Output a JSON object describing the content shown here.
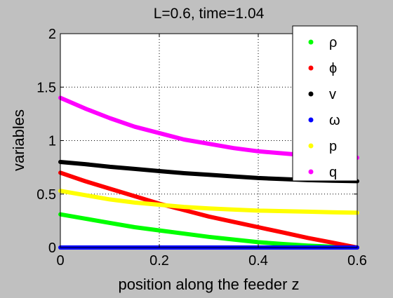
{
  "chart_data": {
    "type": "line",
    "title": "L=0.6, time=1.04",
    "xlabel": "position along the feeder z",
    "ylabel": "variables",
    "xlim": [
      0,
      0.6
    ],
    "ylim": [
      0,
      2
    ],
    "grid": true,
    "legend_position": "top-right",
    "x_ticks": [
      {
        "value": 0,
        "label": "0"
      },
      {
        "value": 0.2,
        "label": "0.2"
      },
      {
        "value": 0.4,
        "label": "0.4"
      },
      {
        "value": 0.6,
        "label": "0.6"
      }
    ],
    "y_ticks": [
      {
        "value": 0,
        "label": "0"
      },
      {
        "value": 0.5,
        "label": "0.5"
      },
      {
        "value": 1,
        "label": "1"
      },
      {
        "value": 1.5,
        "label": "1.5"
      },
      {
        "value": 2,
        "label": "2"
      }
    ],
    "x": [
      0,
      0.05,
      0.1,
      0.15,
      0.2,
      0.25,
      0.3,
      0.35,
      0.4,
      0.45,
      0.5,
      0.55,
      0.6
    ],
    "series": [
      {
        "name": "ρ",
        "color": "#00ff00",
        "values": [
          0.31,
          0.27,
          0.23,
          0.19,
          0.16,
          0.13,
          0.1,
          0.075,
          0.05,
          0.033,
          0.018,
          0.007,
          0.0
        ]
      },
      {
        "name": "ϕ",
        "color": "#ff0000",
        "values": [
          0.7,
          0.62,
          0.55,
          0.48,
          0.41,
          0.35,
          0.29,
          0.24,
          0.19,
          0.14,
          0.09,
          0.045,
          0.0
        ]
      },
      {
        "name": "v",
        "color": "#000000",
        "values": [
          0.8,
          0.78,
          0.755,
          0.735,
          0.715,
          0.695,
          0.68,
          0.665,
          0.65,
          0.64,
          0.63,
          0.625,
          0.62
        ]
      },
      {
        "name": "ω",
        "color": "#0000ff",
        "values": [
          0,
          0,
          0,
          0,
          0,
          0,
          0,
          0,
          0,
          0,
          0,
          0,
          0
        ]
      },
      {
        "name": "p",
        "color": "#ffff00",
        "values": [
          0.53,
          0.49,
          0.45,
          0.42,
          0.4,
          0.38,
          0.365,
          0.355,
          0.345,
          0.34,
          0.335,
          0.33,
          0.325
        ]
      },
      {
        "name": "q",
        "color": "#ff00ff",
        "values": [
          1.4,
          1.3,
          1.21,
          1.13,
          1.07,
          1.01,
          0.97,
          0.93,
          0.9,
          0.88,
          0.86,
          0.85,
          0.84
        ]
      }
    ]
  }
}
